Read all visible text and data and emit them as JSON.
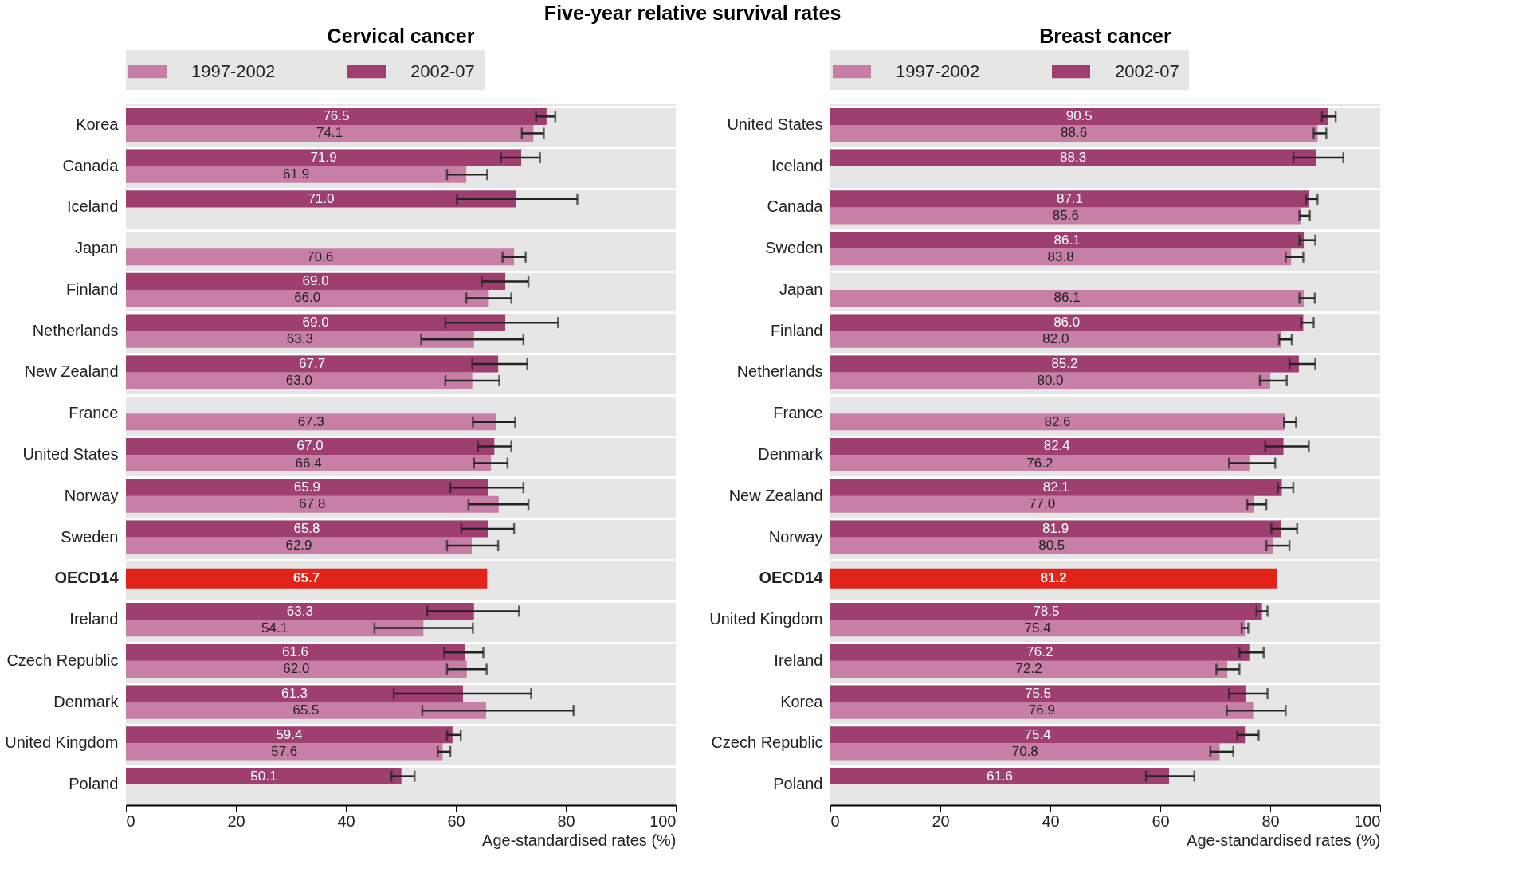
{
  "chart_data": [
    {
      "type": "bar",
      "orientation": "horizontal",
      "title": "Cervical cancer",
      "annotations": [
        "Five-year relative survival rates"
      ],
      "xlabel": "Age-standardised rates (%)",
      "categories": [
        "Korea",
        "Canada",
        "Iceland",
        "Japan",
        "Finland",
        "Netherlands",
        "New Zealand",
        "France",
        "United States",
        "Norway",
        "Sweden",
        "OECD14",
        "Ireland",
        "Czech Republic",
        "Denmark",
        "United Kingdom",
        "Poland"
      ],
      "series": [
        {
          "name": "1997-2002",
          "color": "#c77fa5",
          "values": [
            74.1,
            61.9,
            null,
            70.6,
            66.0,
            63.3,
            63.0,
            67.3,
            66.4,
            67.8,
            62.9,
            null,
            54.1,
            62.0,
            65.5,
            57.6,
            null
          ],
          "value_labels": [
            "74.1",
            "61.9",
            null,
            "70.6",
            "66.0",
            "63.3",
            "63.0",
            "67.3",
            "66.4",
            "67.8",
            "62.9",
            null,
            "54.1",
            "62.0",
            "65.5",
            "57.6",
            null
          ],
          "errors": [
            [
              72.0,
              76.0
            ],
            [
              58.4,
              65.7
            ],
            null,
            [
              68.5,
              72.7
            ],
            [
              61.9,
              70.1
            ],
            [
              53.7,
              72.3
            ],
            [
              58.1,
              67.9
            ],
            [
              63.1,
              70.8
            ],
            [
              63.3,
              69.4
            ],
            [
              62.3,
              73.2
            ],
            [
              58.4,
              67.7
            ],
            null,
            [
              45.2,
              63.1
            ],
            [
              58.4,
              65.6
            ],
            [
              53.9,
              81.4
            ],
            [
              56.7,
              59.0
            ],
            null
          ]
        },
        {
          "name": "2002-07",
          "color": "#9e3f6f",
          "values": [
            76.5,
            71.9,
            71.0,
            null,
            69.0,
            69.0,
            67.7,
            null,
            67.0,
            65.9,
            65.8,
            null,
            63.3,
            61.6,
            61.3,
            59.4,
            50.1
          ],
          "value_labels": [
            "76.5",
            "71.9",
            "71.0",
            null,
            "69.0",
            "69.0",
            "67.7",
            null,
            "67.0",
            "65.9",
            "65.8",
            null,
            "63.3",
            "61.6",
            "61.3",
            "59.4",
            "50.1"
          ],
          "errors": [
            [
              74.6,
              78.1
            ],
            [
              68.2,
              75.3
            ],
            [
              60.2,
              82.1
            ],
            null,
            [
              64.7,
              73.2
            ],
            [
              58.1,
              78.6
            ],
            [
              63.0,
              73.0
            ],
            null,
            [
              64.0,
              70.1
            ],
            [
              59.0,
              72.3
            ],
            [
              61.0,
              70.6
            ],
            null,
            [
              54.8,
              71.5
            ],
            [
              57.9,
              65.0
            ],
            [
              48.7,
              73.7
            ],
            [
              58.4,
              60.9
            ],
            [
              48.3,
              52.5
            ]
          ]
        },
        {
          "color": "#e2231a",
          "values": [
            null,
            null,
            null,
            null,
            null,
            null,
            null,
            null,
            null,
            null,
            null,
            65.7,
            null,
            null,
            null,
            null,
            null
          ],
          "value_labels": [
            null,
            null,
            null,
            null,
            null,
            null,
            null,
            null,
            null,
            null,
            null,
            "65.7",
            null,
            null,
            null,
            null,
            null
          ]
        }
      ],
      "xlim": [
        0,
        100
      ],
      "xticks": [
        0,
        20,
        40,
        60,
        80,
        100
      ],
      "legend": "top",
      "grid": "y"
    },
    {
      "type": "bar",
      "orientation": "horizontal",
      "title": "Breast cancer",
      "xlabel": "Age-standardised rates (%)",
      "categories": [
        "United States",
        "Iceland",
        "Canada",
        "Sweden",
        "Japan",
        "Finland",
        "Netherlands",
        "France",
        "Denmark",
        "New Zealand",
        "Norway",
        "OECD14",
        "United Kingdom",
        "Ireland",
        "Korea",
        "Czech Republic",
        "Poland"
      ],
      "series": [
        {
          "name": "1997-2002",
          "color": "#c77fa5",
          "values": [
            88.6,
            null,
            85.6,
            83.8,
            86.1,
            82.0,
            80.0,
            82.6,
            76.2,
            77.0,
            80.5,
            null,
            75.4,
            72.2,
            76.9,
            70.8,
            null
          ],
          "value_labels": [
            "88.6",
            null,
            "85.6",
            "83.8",
            "86.1",
            "82.0",
            "80.0",
            "82.6",
            "76.2",
            "77.0",
            "80.5",
            null,
            "75.4",
            "72.2",
            "76.9",
            "70.8",
            null
          ],
          "errors": [
            [
              87.9,
              90.2
            ],
            null,
            [
              85.3,
              87.2
            ],
            [
              82.8,
              86.0
            ],
            [
              85.3,
              88.1
            ],
            [
              81.6,
              83.9
            ],
            [
              78.1,
              83.0
            ],
            [
              82.5,
              84.7
            ],
            [
              72.5,
              80.9
            ],
            [
              75.8,
              79.3
            ],
            [
              79.3,
              83.5
            ],
            null,
            [
              74.8,
              76.0
            ],
            [
              70.2,
              74.4
            ],
            [
              72.1,
              82.8
            ],
            [
              69.1,
              73.3
            ],
            null
          ]
        },
        {
          "name": "2002-07",
          "color": "#9e3f6f",
          "values": [
            90.5,
            88.3,
            87.1,
            86.1,
            null,
            86.0,
            85.2,
            null,
            82.4,
            82.1,
            81.9,
            null,
            78.5,
            76.2,
            75.5,
            75.4,
            61.6
          ],
          "value_labels": [
            "90.5",
            "88.3",
            "87.1",
            "86.1",
            null,
            "86.0",
            "85.2",
            null,
            "82.4",
            "82.1",
            "81.9",
            null,
            "78.5",
            "76.2",
            "75.5",
            "75.4",
            "61.6"
          ],
          "errors": [
            [
              89.4,
              91.9
            ],
            [
              84.2,
              93.3
            ],
            [
              86.5,
              88.6
            ],
            [
              85.3,
              88.2
            ],
            null,
            [
              85.6,
              87.9
            ],
            [
              83.5,
              88.2
            ],
            null,
            [
              79.1,
              87.0
            ],
            [
              81.4,
              84.2
            ],
            [
              80.2,
              84.9
            ],
            null,
            [
              77.5,
              79.5
            ],
            [
              74.4,
              78.8
            ],
            [
              72.5,
              79.5
            ],
            [
              74.0,
              77.9
            ],
            [
              57.4,
              66.2
            ]
          ]
        },
        {
          "color": "#e2231a",
          "values": [
            null,
            null,
            null,
            null,
            null,
            null,
            null,
            null,
            null,
            null,
            null,
            81.2,
            null,
            null,
            null,
            null,
            null
          ],
          "value_labels": [
            null,
            null,
            null,
            null,
            null,
            null,
            null,
            null,
            null,
            null,
            null,
            "81.2",
            null,
            null,
            null,
            null,
            null
          ]
        }
      ],
      "xlim": [
        0,
        100
      ],
      "xticks": [
        0,
        20,
        40,
        60,
        80,
        100
      ],
      "legend": "top",
      "grid": "y"
    }
  ]
}
